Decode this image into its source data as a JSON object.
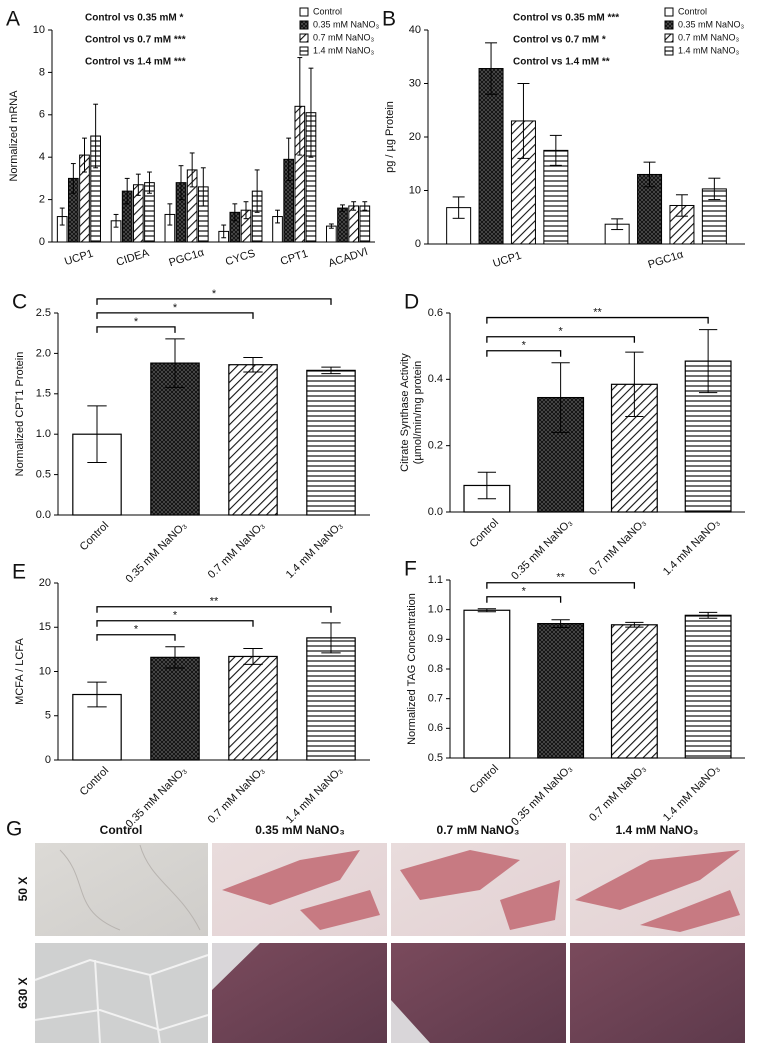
{
  "chart_data": [
    {
      "type": "bar",
      "label": "A",
      "y_label": "Normalized mRNA",
      "annotations": [
        "Control vs 0.35 mM *",
        "Control vs 0.7 mM ***",
        "Control vs 1.4 mM ***"
      ],
      "categories": [
        "UCP1",
        "CIDEA",
        "PGC1α",
        "CYCS",
        "CPT1",
        "ACADVl"
      ],
      "series": [
        {
          "name": "Control",
          "pattern": "none",
          "values": [
            1.2,
            1.0,
            1.3,
            0.5,
            1.2,
            0.75
          ],
          "errors": [
            0.4,
            0.3,
            0.5,
            0.3,
            0.3,
            0.1
          ]
        },
        {
          "name": "0.35 mM NaNO₃",
          "pattern": "crosshatch",
          "values": [
            3.0,
            2.4,
            2.8,
            1.4,
            3.9,
            1.6
          ],
          "errors": [
            0.7,
            0.6,
            0.8,
            0.4,
            1.0,
            0.15
          ]
        },
        {
          "name": "0.7 mM NaNO₃",
          "pattern": "diagonal",
          "values": [
            4.1,
            2.7,
            3.4,
            1.5,
            6.4,
            1.7
          ],
          "errors": [
            0.8,
            0.5,
            0.8,
            0.4,
            2.3,
            0.2
          ]
        },
        {
          "name": "1.4 mM NaNO₃",
          "pattern": "horizontal",
          "values": [
            5.0,
            2.8,
            2.6,
            2.4,
            6.1,
            1.7
          ],
          "errors": [
            1.5,
            0.5,
            0.9,
            1.0,
            2.1,
            0.2
          ]
        }
      ],
      "ylim": [
        0,
        10
      ],
      "yticks": [
        0,
        2,
        4,
        6,
        8,
        10
      ]
    },
    {
      "type": "bar",
      "label": "B",
      "y_label": "pg / µg Protein",
      "annotations": [
        "Control vs 0.35 mM ***",
        "Control vs 0.7 mM *",
        "Control vs 1.4 mM **"
      ],
      "categories": [
        "UCP1",
        "PGC1α"
      ],
      "series": [
        {
          "name": "Control",
          "pattern": "none",
          "values": [
            6.8,
            3.7
          ],
          "errors": [
            2.0,
            1.0
          ]
        },
        {
          "name": "0.35 mM NaNO₃",
          "pattern": "crosshatch",
          "values": [
            32.8,
            13.0
          ],
          "errors": [
            4.8,
            2.3
          ]
        },
        {
          "name": "0.7 mM NaNO₃",
          "pattern": "diagonal",
          "values": [
            23.0,
            7.2
          ],
          "errors": [
            7.0,
            2.0
          ]
        },
        {
          "name": "1.4 mM NaNO₃",
          "pattern": "horizontal",
          "values": [
            17.5,
            10.3
          ],
          "errors": [
            2.8,
            2.0
          ]
        }
      ],
      "ylim": [
        0,
        40
      ],
      "yticks": [
        0,
        10,
        20,
        30,
        40
      ]
    },
    {
      "type": "bar",
      "label": "C",
      "y_label": [
        "Normalized CPT1 Protein"
      ],
      "categories": [
        "Control",
        "0.35 mM NaNO₃",
        "0.7 mM NaNO₃",
        "1.4 mM NaNO₃"
      ],
      "patterns": [
        "none",
        "crosshatch",
        "diagonal",
        "horizontal"
      ],
      "values": [
        1.0,
        1.88,
        1.86,
        1.79
      ],
      "errors": [
        0.35,
        0.3,
        0.09,
        0.04
      ],
      "significance": [
        "*",
        "*",
        "*"
      ],
      "ylim": [
        0,
        2.5
      ],
      "yticks": [
        {
          "value": 0,
          "label": "0.0"
        },
        0.5,
        {
          "value": 1,
          "label": "1.0"
        },
        1.5,
        {
          "value": 2,
          "label": "2.0"
        },
        2.5
      ]
    },
    {
      "type": "bar",
      "label": "D",
      "y_label": [
        "Citrate Synthase Activity",
        "(µmol/min/mg protein"
      ],
      "categories": [
        "Control",
        "0.35 mM NaNO₃",
        "0.7 mM NaNO₃",
        "1.4 mM NaNO₃"
      ],
      "patterns": [
        "none",
        "crosshatch",
        "diagonal",
        "horizontal"
      ],
      "values": [
        0.08,
        0.345,
        0.385,
        0.455
      ],
      "errors": [
        0.04,
        0.105,
        0.097,
        0.095
      ],
      "significance": [
        "*",
        "*",
        "**"
      ],
      "ylim": [
        0,
        0.6
      ],
      "yticks": [
        {
          "value": 0,
          "label": "0.0"
        },
        0.2,
        0.4,
        0.6
      ]
    },
    {
      "type": "bar",
      "label": "E",
      "y_label": [
        "MCFA / LCFA"
      ],
      "categories": [
        "Control",
        "0.35 mM NaNO₃",
        "0.7 mM NaNO₃",
        "1.4 mM NaNO₃"
      ],
      "patterns": [
        "none",
        "crosshatch",
        "diagonal",
        "horizontal"
      ],
      "values": [
        7.4,
        11.6,
        11.7,
        13.8
      ],
      "errors": [
        1.4,
        1.2,
        0.9,
        1.7
      ],
      "significance": [
        "*",
        "*",
        "**"
      ],
      "ylim": [
        0,
        20
      ],
      "yticks": [
        0,
        5,
        10,
        15,
        20
      ]
    },
    {
      "type": "bar",
      "label": "F",
      "y_label": [
        "Normalized TAG Concentration"
      ],
      "categories": [
        "Control",
        "0.35 mM NaNO₃",
        "0.7 mM NaNO₃",
        "1.4 mM NaNO₃"
      ],
      "patterns": [
        "none",
        "crosshatch",
        "diagonal",
        "horizontal"
      ],
      "values": [
        0.998,
        0.953,
        0.949,
        0.981
      ],
      "errors": [
        0.005,
        0.013,
        0.008,
        0.01
      ],
      "significance": [
        "*",
        "**"
      ],
      "ylim": [
        0.5,
        1.1
      ],
      "yticks": [
        0.5,
        0.6,
        0.7,
        0.8,
        0.9,
        {
          "value": 1,
          "label": "1.0"
        },
        1.1
      ]
    }
  ],
  "panel_g": {
    "label": "G",
    "columns": [
      "Control",
      "0.35 mM NaNO₃",
      "0.7 mM NaNO₃",
      "1.4 mM NaNO₃"
    ],
    "rows": [
      "50 X",
      "630 X"
    ]
  }
}
